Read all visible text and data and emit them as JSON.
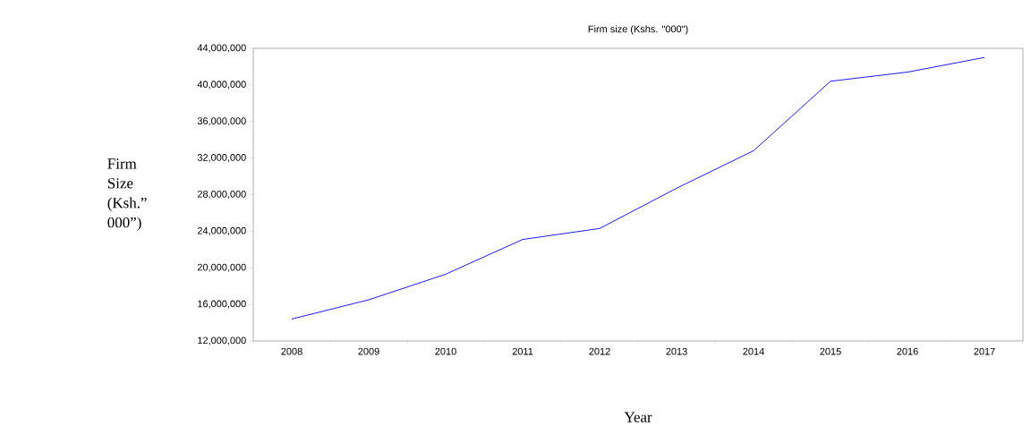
{
  "chart_data": {
    "type": "line",
    "title": "Firm size  (Kshs. \"000\")",
    "xlabel": "Year",
    "ylabel": "Firm Size (Ksh.” 000”)",
    "categories": [
      "2008",
      "2009",
      "2010",
      "2011",
      "2012",
      "2013",
      "2014",
      "2015",
      "2016",
      "2017"
    ],
    "series": [
      {
        "color": "#0000ff",
        "values": [
          14400000,
          16500000,
          19300000,
          23100000,
          24300000,
          28700000,
          32800000,
          40400000,
          41400000,
          43000000
        ]
      }
    ],
    "ylim": [
      12000000,
      44000000
    ],
    "yticks": [
      {
        "value": 12000000,
        "label": "12,000,000"
      },
      {
        "value": 16000000,
        "label": "16,000,000"
      },
      {
        "value": 20000000,
        "label": "20,000,000"
      },
      {
        "value": 24000000,
        "label": "24,000,000"
      },
      {
        "value": 28000000,
        "label": "28,000,000"
      },
      {
        "value": 32000000,
        "label": "32,000,000"
      },
      {
        "value": 36000000,
        "label": "36,000,000"
      },
      {
        "value": 40000000,
        "label": "40,000,000"
      },
      {
        "value": 44000000,
        "label": "44,000,000"
      }
    ],
    "grid": false,
    "marker": "none",
    "line_style": "solid"
  }
}
